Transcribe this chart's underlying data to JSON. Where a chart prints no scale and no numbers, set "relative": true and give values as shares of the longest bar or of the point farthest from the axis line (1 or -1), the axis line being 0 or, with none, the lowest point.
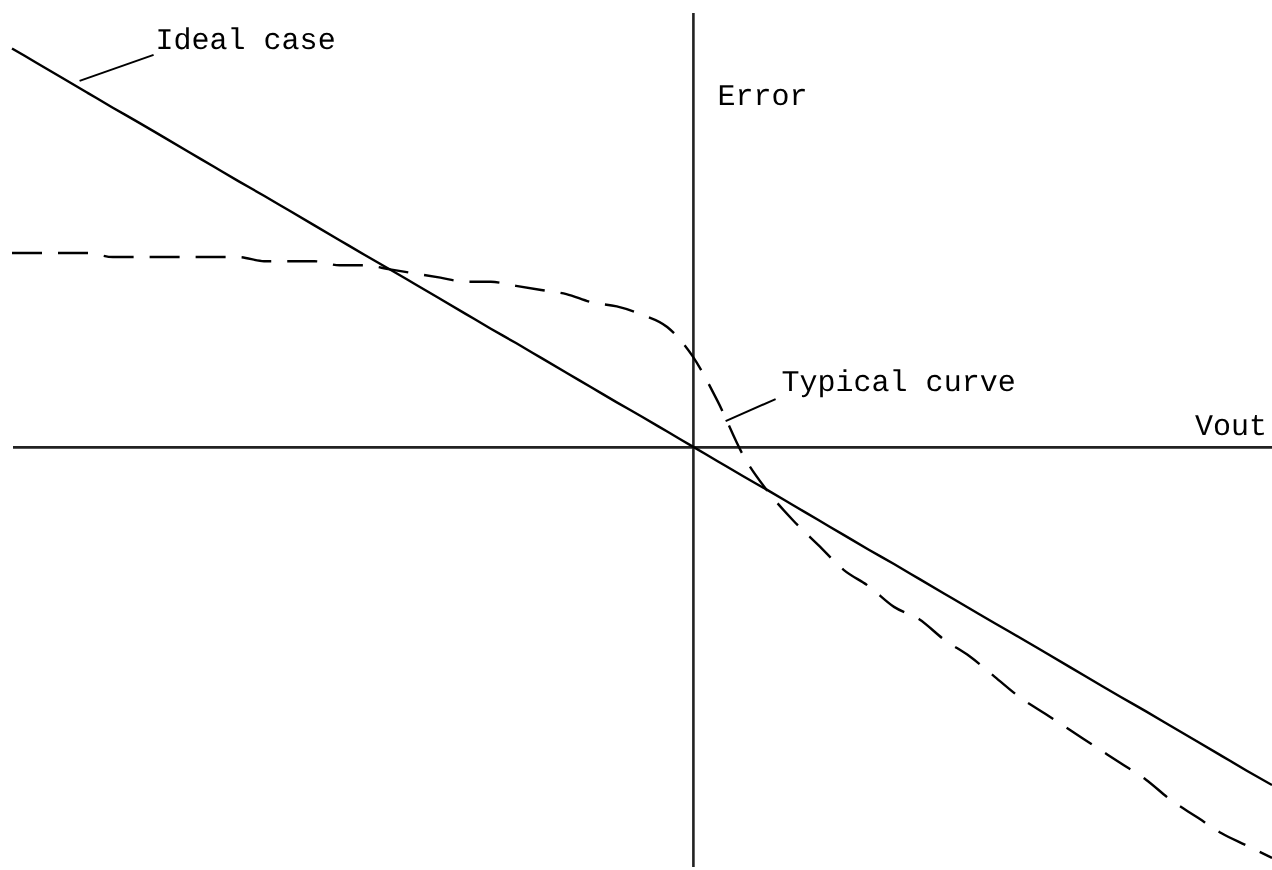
{
  "chart_data": {
    "type": "line",
    "relative": true,
    "xlabel": "Vout",
    "ylabel": "Error",
    "categories": [
      null,
      null,
      null,
      null,
      null,
      null,
      null,
      null,
      null,
      null,
      null,
      null,
      null,
      null,
      null,
      null,
      null,
      null,
      null,
      null,
      null,
      null,
      null,
      null,
      null,
      null,
      null,
      null,
      null,
      null,
      null,
      null,
      null,
      null,
      null,
      null,
      null,
      null,
      null,
      null,
      null,
      null,
      null,
      null,
      null,
      null,
      null,
      null,
      null,
      null,
      null
    ],
    "series": [
      {
        "name": "Ideal case",
        "color": "#000000",
        "line_style": "solid",
        "values": [
          0.967,
          0.931,
          0.895,
          0.859,
          0.823,
          0.788,
          0.752,
          0.716,
          0.68,
          0.644,
          0.609,
          0.573,
          0.537,
          0.501,
          0.465,
          0.43,
          0.394,
          0.358,
          0.322,
          0.286,
          0.251,
          0.215,
          0.179,
          0.143,
          0.107,
          0.072,
          0.036,
          0,
          -0.036,
          -0.072,
          -0.107,
          -0.143,
          -0.179,
          -0.215,
          -0.251,
          -0.286,
          -0.322,
          -0.358,
          -0.394,
          -0.43,
          -0.465,
          -0.501,
          -0.537,
          -0.573,
          -0.609,
          -0.644,
          -0.68,
          -0.716,
          -0.752,
          -0.788,
          -0.823
        ]
      },
      {
        "name": "Typical curve",
        "color": "#000000",
        "line_style": "dashed",
        "values": [
          0.47,
          0.47,
          0.47,
          0.47,
          0.46,
          0.46,
          0.46,
          0.46,
          0.46,
          0.46,
          0.45,
          0.45,
          0.45,
          0.44,
          0.44,
          0.43,
          0.42,
          0.41,
          0.4,
          0.4,
          0.39,
          0.38,
          0.37,
          0.35,
          0.34,
          0.32,
          0.29,
          0.22,
          0.11,
          -0.02,
          -0.11,
          -0.18,
          -0.24,
          -0.3,
          -0.34,
          -0.39,
          -0.42,
          -0.47,
          -0.51,
          -0.56,
          -0.61,
          -0.65,
          -0.69,
          -0.73,
          -0.77,
          -0.81,
          -0.86,
          -0.9,
          -0.94,
          -0.97,
          -1.0
        ]
      }
    ],
    "grid": false,
    "legend": false,
    "tick_labels": false
  }
}
